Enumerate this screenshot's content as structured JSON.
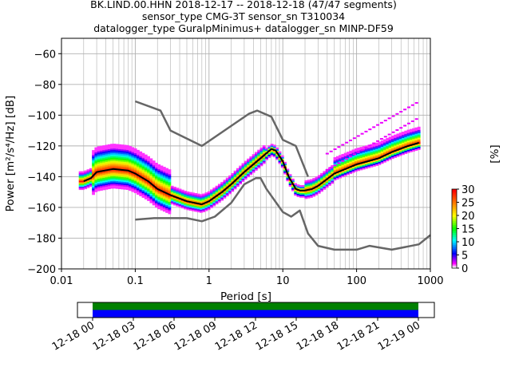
{
  "titles": [
    "BK.LIND.00.HHN   2018-12-17 -- 2018-12-18  (47/47 segments)",
    "sensor_type CMG-3T sensor_sn T310034",
    "datalogger_type GuralpMinimus+ datalogger_sn MINP-DF59"
  ],
  "chart_data": {
    "type": "heatmap",
    "xlabel": "Period [s]",
    "ylabel": "Power [m²/s⁴/Hz] [dB]",
    "xscale": "log",
    "xlim": [
      0.01,
      1000
    ],
    "ylim": [
      -200,
      -50
    ],
    "x_ticks": [
      0.01,
      0.1,
      1,
      10,
      100,
      1000
    ],
    "x_tick_labels": [
      "0.01",
      "0.1",
      "1",
      "10",
      "100",
      "1000"
    ],
    "y_ticks": [
      -200,
      -180,
      -160,
      -140,
      -120,
      -100,
      -80,
      -60
    ],
    "y_tick_labels": [
      "−200",
      "−180",
      "−160",
      "−140",
      "−120",
      "−100",
      "−80",
      "−60"
    ],
    "grid": true,
    "colorbar": {
      "label": "[%]",
      "range": [
        0,
        30
      ],
      "ticks": [
        0,
        5,
        10,
        15,
        20,
        25,
        30
      ],
      "tick_labels": [
        "0",
        "5",
        "10",
        "15",
        "20",
        "25",
        "30"
      ],
      "colormap": "pqlx"
    },
    "series": [
      {
        "name": "",
        "role": "noise-model-high",
        "color": "#666666",
        "x": [
          0.1,
          0.22,
          0.3,
          0.8,
          3.5,
          4.5,
          7,
          10,
          15,
          22
        ],
        "y": [
          -91,
          -97,
          -110,
          -120,
          -99,
          -97,
          -101,
          -116,
          -120,
          -140
        ]
      },
      {
        "name": "",
        "role": "noise-model-low",
        "color": "#666666",
        "x": [
          0.1,
          0.18,
          0.5,
          0.8,
          1.2,
          2,
          3,
          4.3,
          5,
          6,
          10,
          13,
          17,
          22,
          30,
          50,
          100,
          150,
          300,
          700,
          1000
        ],
        "y": [
          -168,
          -167,
          -167,
          -169,
          -166,
          -157,
          -145,
          -141,
          -141,
          -148,
          -163,
          -166,
          -162,
          -177,
          -185,
          -187.5,
          -187.5,
          -185,
          -187.5,
          -184,
          -178
        ]
      },
      {
        "name": "",
        "role": "mode",
        "color": "#000000",
        "x": [
          0.02,
          0.025,
          0.03,
          0.05,
          0.08,
          0.1,
          0.15,
          0.2,
          0.3,
          0.5,
          0.8,
          1,
          1.5,
          2,
          3,
          5,
          7,
          8,
          10,
          12,
          15,
          17,
          20,
          25,
          30,
          50,
          100,
          200,
          300,
          500,
          700
        ],
        "y": [
          -143,
          -141,
          -137,
          -135,
          -136,
          -138,
          -143,
          -148,
          -152,
          -156,
          -158,
          -156,
          -150,
          -145,
          -137,
          -128,
          -122,
          -123,
          -130,
          -140,
          -148,
          -149,
          -149,
          -148,
          -146,
          -138,
          -132,
          -128,
          -124,
          -120,
          -118
        ]
      }
    ],
    "data_window": {
      "tick_labels": [
        "12-18 00",
        "12-18 03",
        "12-18 06",
        "12-18 09",
        "12-18 12",
        "12-18 15",
        "12-18 18",
        "12-18 21",
        "12-19 00"
      ],
      "bar_colors": [
        "#008000",
        "#0000ff"
      ]
    }
  }
}
